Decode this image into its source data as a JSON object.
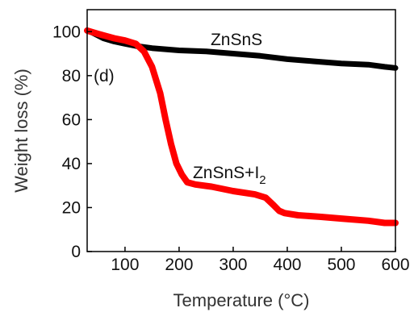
{
  "chart_data": {
    "type": "line",
    "title": "",
    "xlabel": "Temperature (°C)",
    "ylabel": "Weight loss (%)",
    "xlim": [
      30,
      600
    ],
    "ylim": [
      0,
      110
    ],
    "xticks": [
      100,
      200,
      300,
      400,
      500,
      600
    ],
    "yticks": [
      0,
      20,
      40,
      60,
      80,
      100
    ],
    "grid": false,
    "legend": "none",
    "panel_label": "(d)",
    "series": [
      {
        "name": "ZnSnS",
        "color": "#000000",
        "x": [
          30,
          40,
          60,
          80,
          100,
          120,
          150,
          200,
          250,
          300,
          350,
          400,
          450,
          500,
          550,
          580,
          600
        ],
        "y": [
          100.5,
          99.5,
          97,
          95.5,
          94.5,
          93.5,
          92.5,
          91.5,
          91,
          90,
          89,
          87.5,
          86.5,
          85.5,
          85,
          84,
          83.5
        ]
      },
      {
        "name": "ZnSnS+I2",
        "color": "#ff0000",
        "x": [
          30,
          50,
          80,
          100,
          120,
          135,
          150,
          165,
          175,
          185,
          195,
          205,
          215,
          230,
          260,
          300,
          340,
          360,
          375,
          385,
          395,
          420,
          460,
          500,
          550,
          580,
          600
        ],
        "y": [
          100.5,
          99,
          97,
          96,
          94.5,
          91,
          84,
          72,
          60,
          49,
          40,
          35,
          31.5,
          30.5,
          29.5,
          27.5,
          26,
          24.5,
          21,
          18.5,
          17.5,
          16.5,
          15.8,
          15,
          14,
          13,
          13
        ]
      }
    ],
    "annotations": [
      {
        "text": "ZnSnS",
        "x": 300,
        "y": 96.5
      },
      {
        "text": "ZnSnS+I",
        "sub": "2",
        "x": 312,
        "y": 36
      }
    ]
  }
}
